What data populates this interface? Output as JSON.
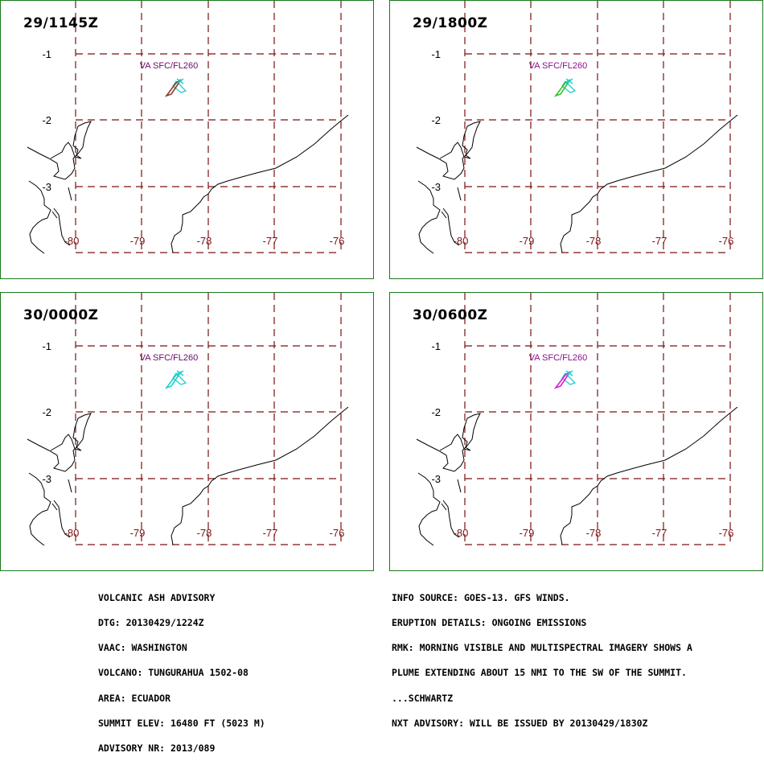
{
  "panels": [
    {
      "time": "29/1145Z",
      "va_label": "VA SFC/FL260",
      "va_color": "#6a0a6a",
      "obs_color": "#8b3a2a"
    },
    {
      "time": "29/1800Z",
      "va_label": "VA SFC/FL260",
      "va_color": "#8a108a",
      "obs_color": "#30c030"
    },
    {
      "time": "30/0000Z",
      "va_label": "VA SFC/FL260",
      "va_color": "#6a0a6a",
      "obs_color": "#20d0d0"
    },
    {
      "time": "30/0600Z",
      "va_label": "VA SFC/FL260",
      "va_color": "#8a108a",
      "obs_color": "#d020d0"
    }
  ],
  "grid": {
    "lat_labels": [
      "-1",
      "-2",
      "-3"
    ],
    "lon_labels": [
      "-80",
      "-79",
      "-78",
      "-77",
      "-76"
    ],
    "grid_color": "#7a1010",
    "label_color": "#7a1010"
  },
  "volcano_marker_color": "#20d0d0",
  "advisory_left": [
    "VOLCANIC ASH ADVISORY",
    "DTG: 20130429/1224Z",
    "VAAC: WASHINGTON",
    "VOLCANO: TUNGURAHUA 1502-08",
    "AREA: ECUADOR",
    "SUMMIT ELEV: 16480 FT (5023 M)",
    "ADVISORY NR: 2013/089"
  ],
  "advisory_right": [
    "INFO SOURCE: GOES-13. GFS WINDS.",
    "ERUPTION DETAILS: ONGOING EMISSIONS",
    "RMK: MORNING VISIBLE AND MULTISPECTRAL IMAGERY SHOWS A",
    "PLUME EXTENDING ABOUT 15 NMI TO THE SW OF THE SUMMIT.",
    "...SCHWARTZ",
    "NXT ADVISORY: WILL BE ISSUED BY 20130429/1830Z"
  ]
}
